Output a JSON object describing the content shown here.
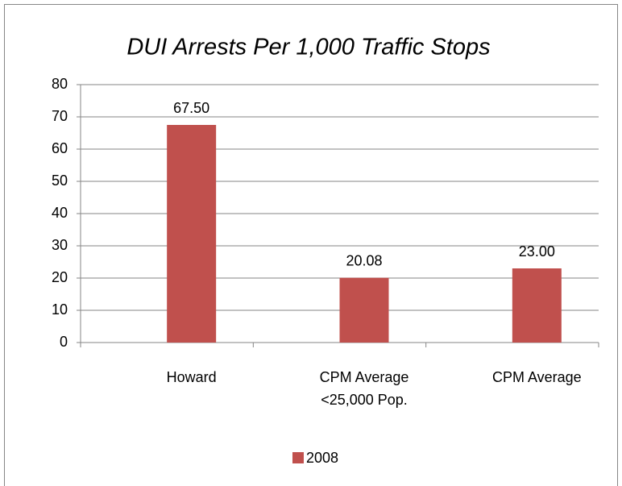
{
  "chart_data": {
    "type": "bar",
    "title": "DUI Arrests Per 1,000 Traffic Stops",
    "categories": [
      "Howard",
      "CPM Average <25,000 Pop.",
      "CPM Average"
    ],
    "series": [
      {
        "name": "2008",
        "color": "#c0504d",
        "values": [
          67.5,
          20.08,
          23
        ],
        "value_labels": [
          "67.50",
          "20.08",
          "23.00"
        ]
      }
    ],
    "ylim": [
      0,
      80
    ],
    "yticks": [
      0,
      10,
      20,
      30,
      40,
      50,
      60,
      70,
      80
    ],
    "grid": true,
    "legend": "bottom"
  }
}
